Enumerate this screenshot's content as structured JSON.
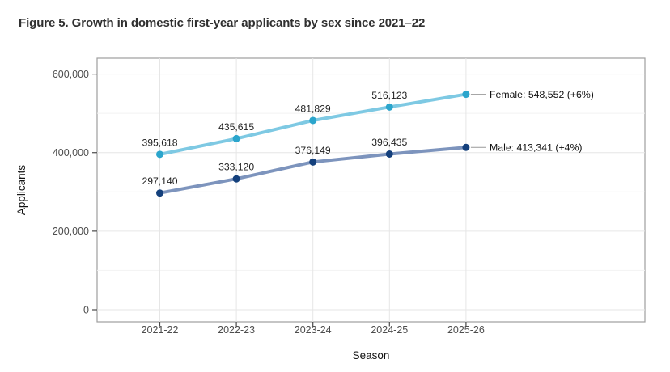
{
  "title": "Figure 5. Growth in domestic first-year applicants by sex since 2021–22",
  "chart_data": {
    "type": "line",
    "x": [
      "2021-22",
      "2022-23",
      "2023-24",
      "2024-25",
      "2025-26"
    ],
    "xlabel": "Season",
    "ylabel": "Applicants",
    "ylim": [
      0,
      600000
    ],
    "yticks": [
      0,
      200000,
      400000,
      600000
    ],
    "ytick_labels": [
      "0",
      "200,000",
      "400,000",
      "600,000"
    ],
    "yticks_minor": [
      100000,
      300000,
      500000
    ],
    "grid": true,
    "legend_position": "right-annotations",
    "series": [
      {
        "name": "Female",
        "values": [
          395618,
          435615,
          481829,
          516123,
          548552
        ],
        "point_labels": [
          "395,618",
          "435,615",
          "481,829",
          "516,123"
        ],
        "end_label": "Female: 548,552 (+6%)",
        "line_color": "#7EC9E3",
        "point_color": "#2BA5CC"
      },
      {
        "name": "Male",
        "values": [
          297140,
          333120,
          376149,
          396435,
          413341
        ],
        "point_labels": [
          "297,140",
          "333,120",
          "376,149",
          "396,435"
        ],
        "end_label": "Male: 413,341 (+4%)",
        "line_color": "#7D94BD",
        "point_color": "#14407C"
      }
    ],
    "colors": {
      "grid_major": "#e6e6e6",
      "grid_minor": "#f2f2f2",
      "panel_border": "#9e9e9e",
      "tick": "#4a4a4a",
      "tick_label": "#4d4d4d",
      "data_label": "#1f1f1f",
      "axis_title": "#111111",
      "leader_line": "#999999",
      "title_text": "#303030"
    }
  }
}
